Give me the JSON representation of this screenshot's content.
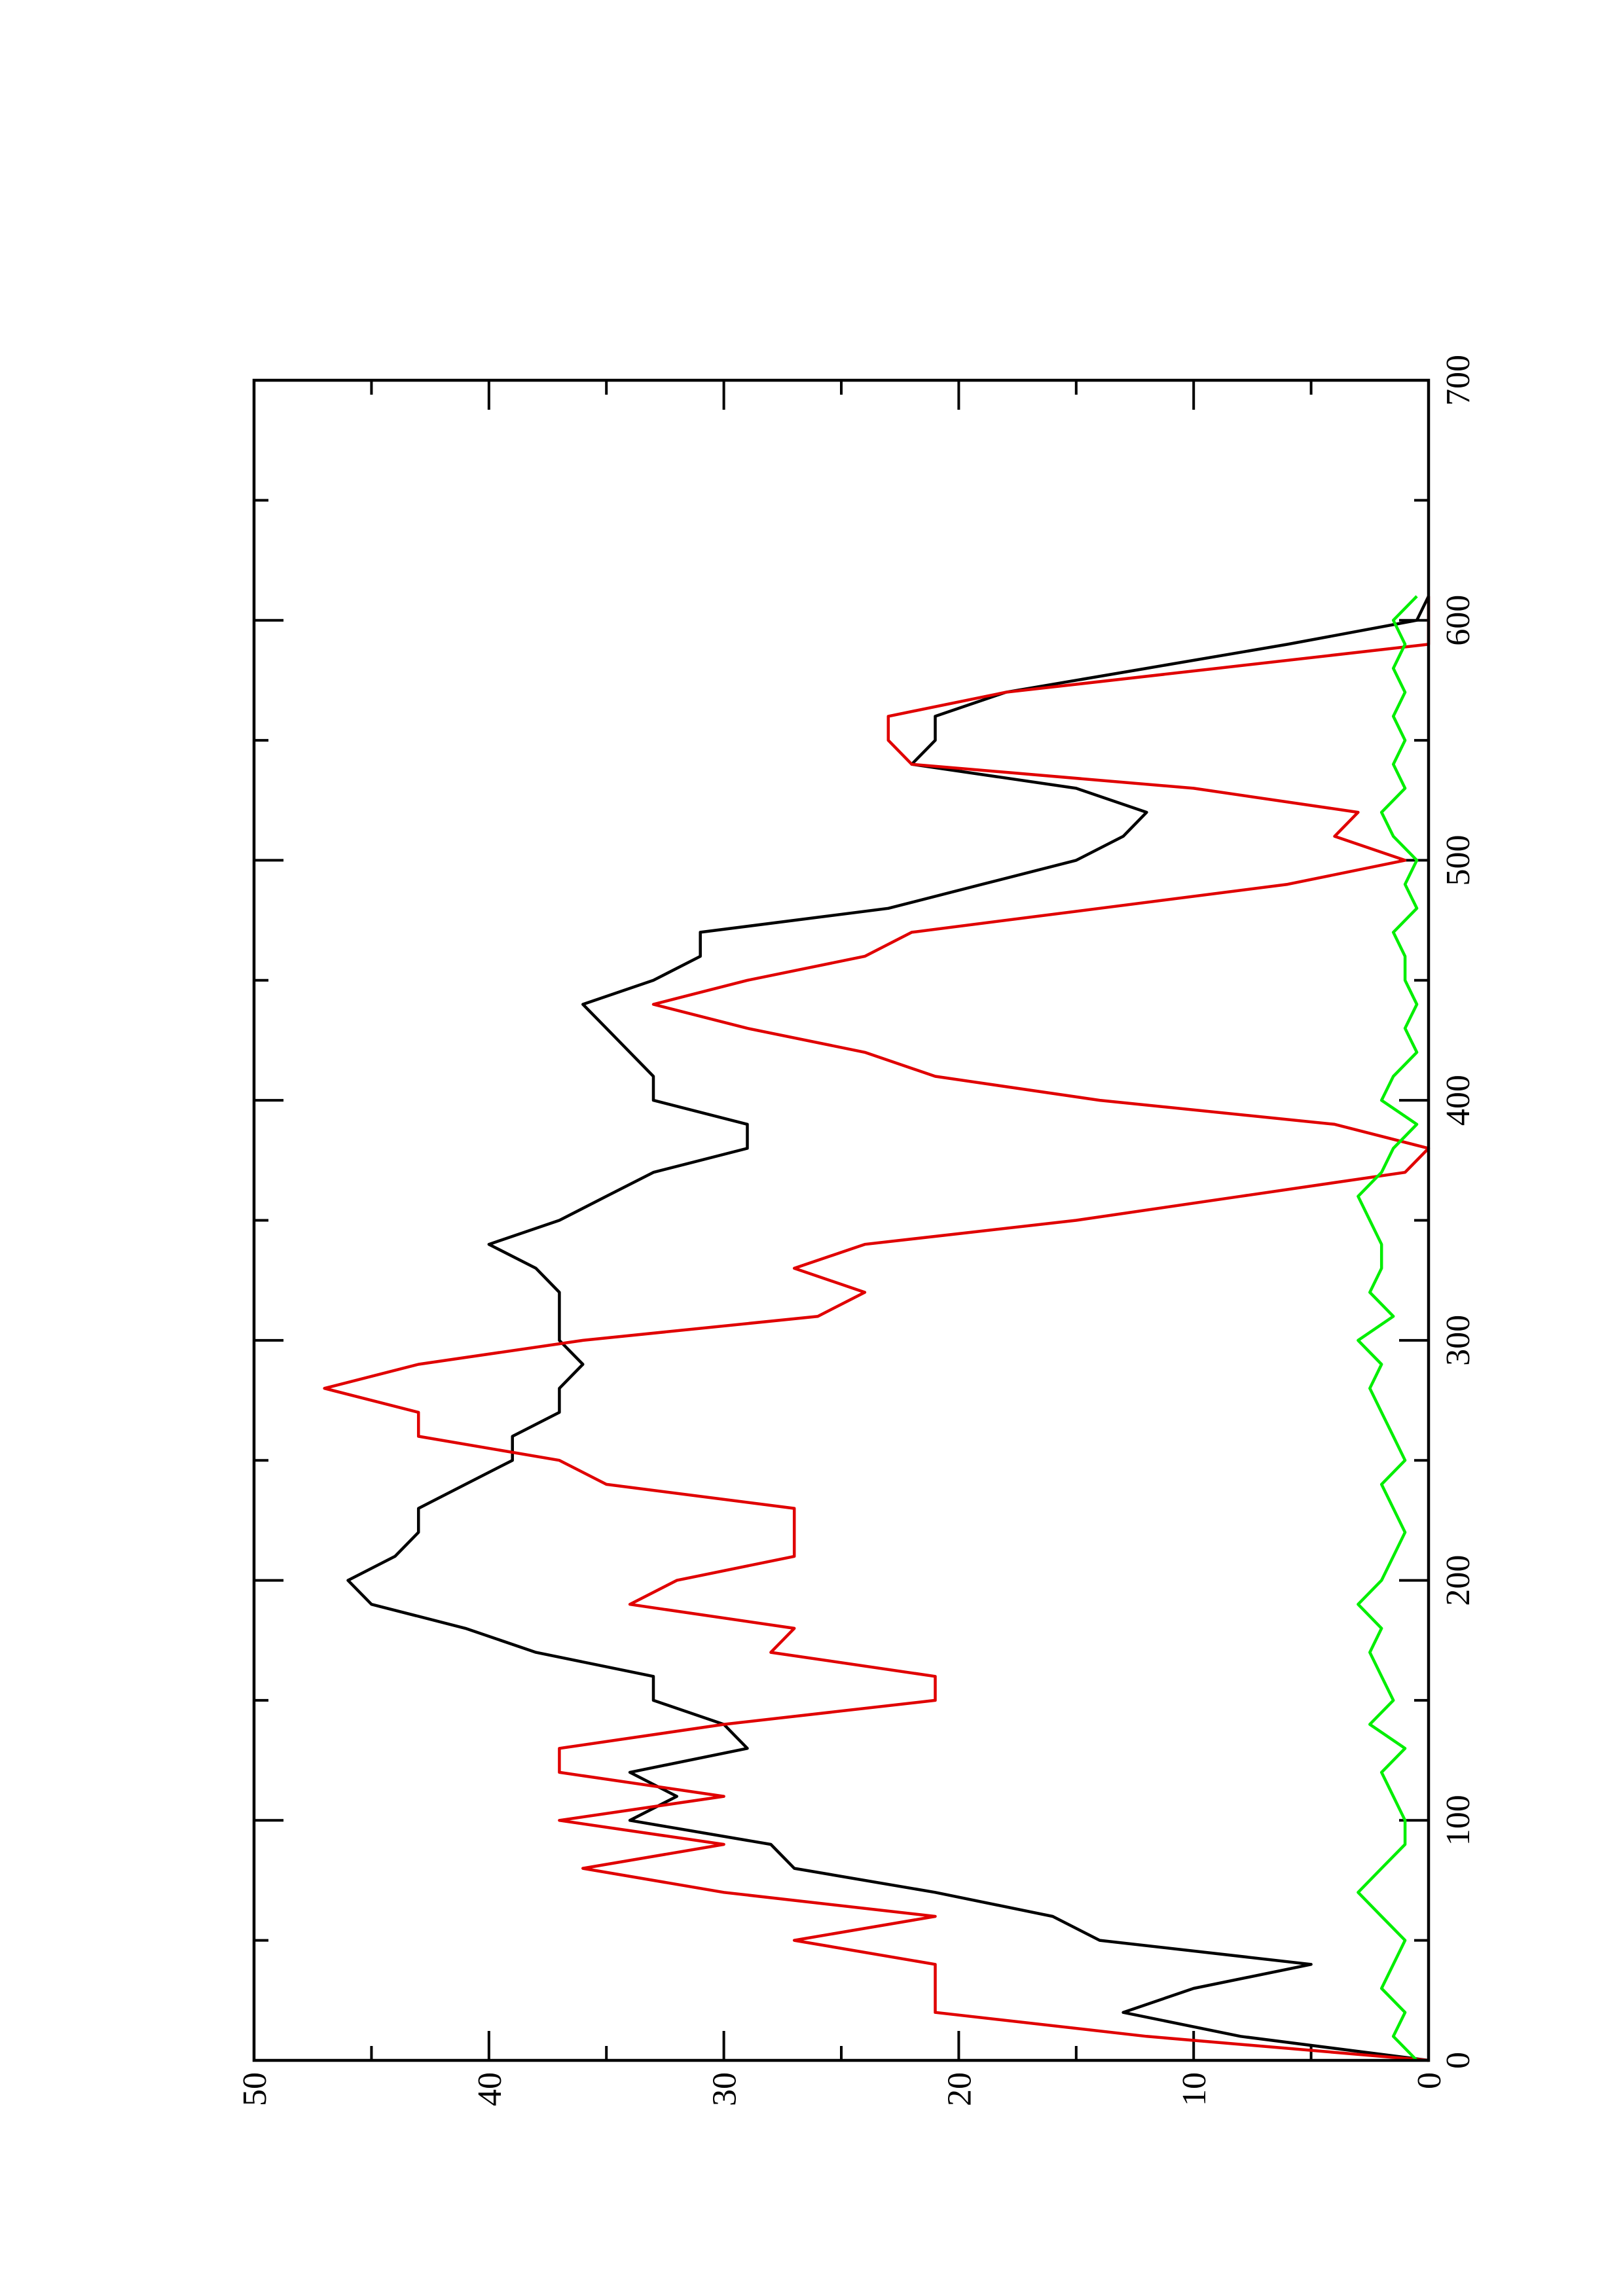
{
  "chart_data": {
    "type": "line",
    "orientation": "rotated",
    "x": [
      0,
      10,
      20,
      30,
      40,
      50,
      60,
      70,
      80,
      90,
      100,
      110,
      120,
      130,
      140,
      150,
      160,
      170,
      180,
      190,
      200,
      210,
      220,
      230,
      240,
      250,
      260,
      270,
      280,
      290,
      300,
      310,
      320,
      330,
      340,
      350,
      360,
      370,
      380,
      390,
      400,
      410,
      420,
      430,
      440,
      450,
      460,
      470,
      480,
      490,
      500,
      510,
      520,
      530,
      540,
      550,
      560,
      570,
      580,
      590,
      600,
      610
    ],
    "series": [
      {
        "color": "#000000",
        "values": [
          0,
          8,
          13,
          10,
          5,
          14,
          16,
          21,
          27,
          28,
          34,
          32,
          34,
          29,
          30,
          33,
          33,
          38,
          41,
          45,
          46,
          44,
          43,
          43,
          41,
          39,
          39,
          37,
          37,
          36,
          37,
          37,
          37,
          38,
          40,
          37,
          35,
          33,
          29,
          29,
          33,
          33,
          34,
          35,
          36,
          33,
          31,
          31,
          23,
          19,
          15,
          13,
          12,
          15,
          22,
          21,
          21,
          18,
          12,
          6,
          0.5,
          0
        ]
      },
      {
        "color": "#e00000",
        "values": [
          0,
          12,
          21,
          21,
          21,
          27,
          21,
          30,
          36,
          30,
          37,
          30,
          37,
          37,
          30,
          21,
          21,
          28,
          27,
          34,
          32,
          27,
          27,
          27,
          35,
          37,
          43,
          43,
          47,
          43,
          36,
          26,
          24,
          27,
          24,
          15,
          8,
          1,
          0,
          4,
          14,
          21,
          24,
          29,
          33,
          29,
          24,
          22,
          14,
          6,
          1,
          4,
          3,
          10,
          22,
          23,
          23,
          18,
          9,
          0,
          0,
          0
        ]
      },
      {
        "color": "#00ee00",
        "values": [
          0.5,
          1.5,
          1,
          2,
          1.5,
          1,
          2,
          3,
          2,
          1,
          1,
          1.5,
          2,
          1,
          2.5,
          1.5,
          2,
          2.5,
          2,
          3,
          2,
          1.5,
          1,
          1.5,
          2,
          1,
          1.5,
          2,
          2.5,
          2,
          3,
          1.5,
          2.5,
          2,
          2,
          2.5,
          3,
          2,
          1.5,
          0.5,
          2,
          1.5,
          0.5,
          1,
          0.5,
          1,
          1,
          1.5,
          0.5,
          1,
          0.5,
          1.5,
          2,
          1,
          1.5,
          1,
          1.5,
          1,
          1.5,
          1,
          1.5,
          0.5
        ]
      }
    ],
    "xlim": [
      0,
      700
    ],
    "xticks": [
      0,
      100,
      200,
      300,
      400,
      500,
      600,
      700
    ],
    "xticks_minor": [
      50,
      150,
      250,
      350,
      450,
      550,
      650
    ],
    "ylim": [
      0,
      50
    ],
    "yticks": [
      0,
      10,
      20,
      30,
      40,
      50
    ],
    "yticks_minor": [
      5,
      15,
      25,
      35,
      45
    ]
  }
}
